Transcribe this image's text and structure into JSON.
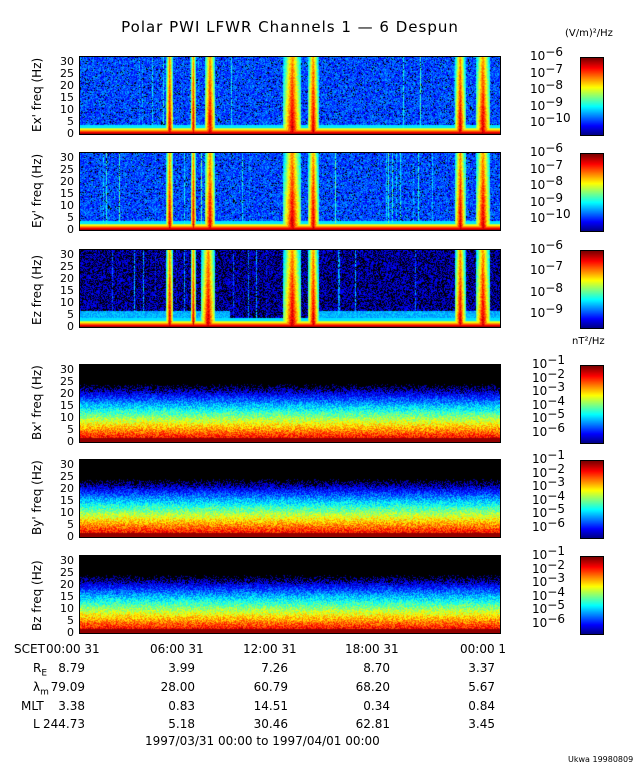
{
  "title": "Polar PWI LFWR Channels 1 — 6 Despun",
  "e_unit": "(V/m)²/Hz",
  "b_unit": "nT²/Hz",
  "chart_data": [
    {
      "type": "heatmap",
      "ylabel": "Ex' freq (Hz)",
      "yticks": [
        0,
        5,
        10,
        15,
        20,
        25,
        30
      ],
      "ylim": [
        0,
        32
      ],
      "xlim_h": [
        0,
        24
      ],
      "colorbar_ticks": [
        "10^-6",
        "10^-7",
        "10^-8",
        "10^-9",
        "10^-10"
      ],
      "kind": "E",
      "bursts_h": [
        [
          4.9,
          5.3
        ],
        [
          6.3,
          6.6
        ],
        [
          7.1,
          7.7
        ],
        [
          11.6,
          12.6
        ],
        [
          13.0,
          13.6
        ],
        [
          21.4,
          22.0
        ],
        [
          22.6,
          23.4
        ]
      ]
    },
    {
      "type": "heatmap",
      "ylabel": "Ey' freq (Hz)",
      "yticks": [
        0,
        5,
        10,
        15,
        20,
        25,
        30
      ],
      "ylim": [
        0,
        32
      ],
      "xlim_h": [
        0,
        24
      ],
      "colorbar_ticks": [
        "10^-6",
        "10^-7",
        "10^-8",
        "10^-9",
        "10^-10"
      ],
      "kind": "E",
      "bursts_h": [
        [
          4.9,
          5.3
        ],
        [
          6.3,
          6.6
        ],
        [
          7.1,
          7.7
        ],
        [
          11.6,
          12.6
        ],
        [
          13.0,
          13.6
        ],
        [
          21.4,
          22.0
        ],
        [
          22.6,
          23.4
        ]
      ]
    },
    {
      "type": "heatmap",
      "ylabel": "Ez freq (Hz)",
      "yticks": [
        0,
        5,
        10,
        15,
        20,
        25,
        30
      ],
      "ylim": [
        0,
        32
      ],
      "xlim_h": [
        0,
        24
      ],
      "colorbar_ticks": [
        "10^-6",
        "10^-7",
        "10^-8",
        "10^-9"
      ],
      "kind": "Ez",
      "bursts_h": [
        [
          4.9,
          5.3
        ],
        [
          6.3,
          6.6
        ],
        [
          6.9,
          7.7
        ],
        [
          11.6,
          12.6
        ],
        [
          13.0,
          13.6
        ],
        [
          21.4,
          22.0
        ],
        [
          22.6,
          23.4
        ]
      ]
    },
    {
      "type": "heatmap",
      "ylabel": "Bx' freq (Hz)",
      "yticks": [
        0,
        5,
        10,
        15,
        20,
        25,
        30
      ],
      "ylim": [
        0,
        32
      ],
      "xlim_h": [
        0,
        24
      ],
      "colorbar_ticks": [
        "10^-1",
        "10^-2",
        "10^-3",
        "10^-4",
        "10^-5",
        "10^-6"
      ],
      "kind": "B",
      "bursts_h": []
    },
    {
      "type": "heatmap",
      "ylabel": "By' freq (Hz)",
      "yticks": [
        0,
        5,
        10,
        15,
        20,
        25,
        30
      ],
      "ylim": [
        0,
        32
      ],
      "xlim_h": [
        0,
        24
      ],
      "colorbar_ticks": [
        "10^-1",
        "10^-2",
        "10^-3",
        "10^-4",
        "10^-5",
        "10^-6"
      ],
      "kind": "B",
      "bursts_h": []
    },
    {
      "type": "heatmap",
      "ylabel": "Bz freq (Hz)",
      "yticks": [
        0,
        5,
        10,
        15,
        20,
        25,
        30
      ],
      "ylim": [
        0,
        32
      ],
      "xlim_h": [
        0,
        24
      ],
      "colorbar_ticks": [
        "10^-1",
        "10^-2",
        "10^-3",
        "10^-4",
        "10^-5",
        "10^-6"
      ],
      "kind": "B",
      "bursts_h": []
    }
  ],
  "table": {
    "rows": [
      {
        "label": "SCET",
        "values": [
          "00:00 31",
          "06:00 31",
          "12:00 31",
          "18:00 31",
          "00:00  1"
        ]
      },
      {
        "label": "R_E",
        "values": [
          "8.79",
          "3.99",
          "7.26",
          "8.70",
          "3.37"
        ]
      },
      {
        "label": "λ_m",
        "values": [
          "79.09",
          "28.00",
          "60.79",
          "68.20",
          "5.67"
        ]
      },
      {
        "label": "MLT",
        "values": [
          "3.38",
          "0.83",
          "14.51",
          "0.34",
          "0.84"
        ]
      },
      {
        "label": "L",
        "values": [
          "244.73",
          "5.18",
          "30.46",
          "62.81",
          "3.45"
        ]
      }
    ],
    "range": "1997/03/31 00:00 to 1997/04/01 00:00"
  },
  "footer": "Ukwa 19980809"
}
